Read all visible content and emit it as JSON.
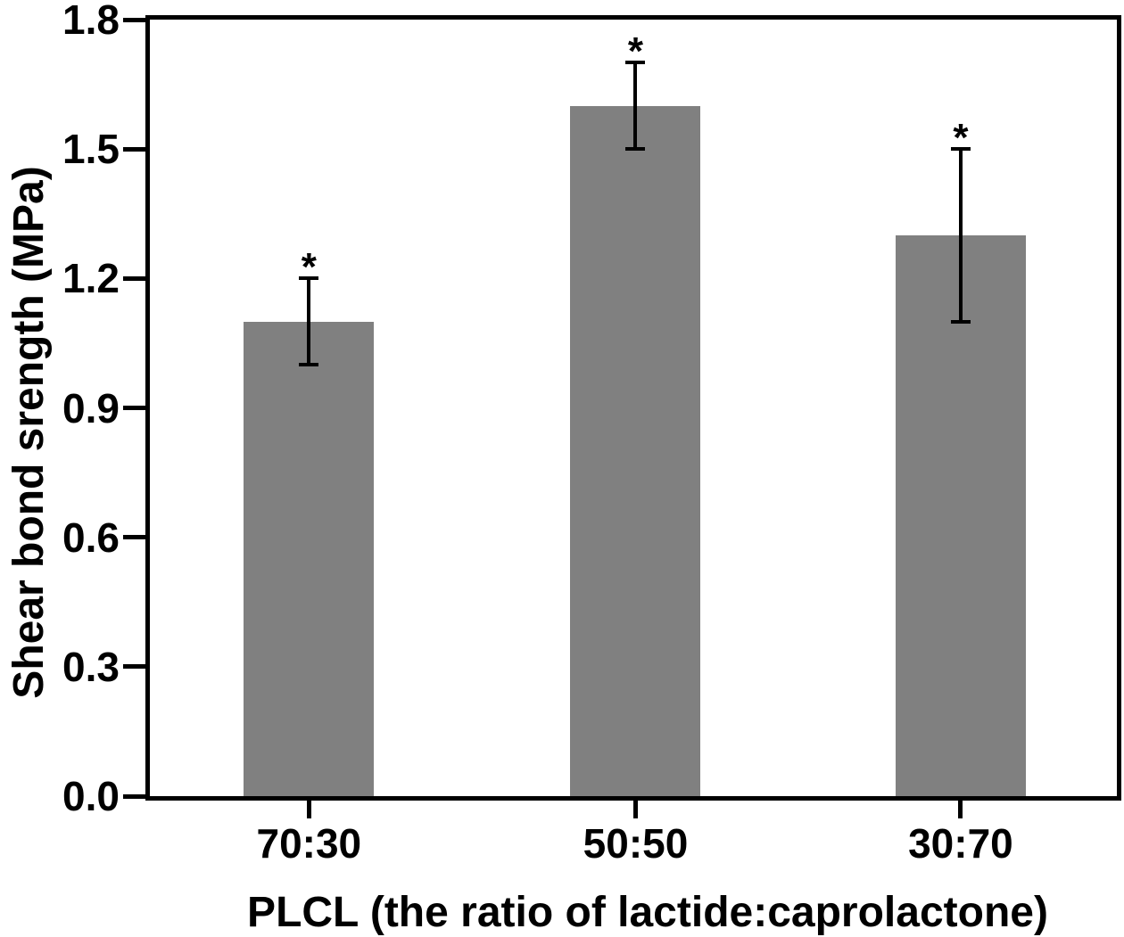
{
  "chart_data": {
    "type": "bar",
    "title": "",
    "xlabel": "PLCL (the ratio of lactide:caprolactone)",
    "ylabel": "Shear bond srength (MPa)",
    "categories": [
      "70:30",
      "50:50",
      "30:70"
    ],
    "values": [
      1.1,
      1.6,
      1.3
    ],
    "errors": [
      0.1,
      0.1,
      0.2
    ],
    "significance": [
      "*",
      "*",
      "*"
    ],
    "ylim": [
      0.0,
      1.8
    ],
    "yticks": [
      "0.0",
      "0.3",
      "0.6",
      "0.9",
      "1.2",
      "1.5",
      "1.8"
    ],
    "bar_color": "#808080",
    "axis_color": "#000000",
    "background_color": "#ffffff",
    "grid": false,
    "legend": null
  }
}
